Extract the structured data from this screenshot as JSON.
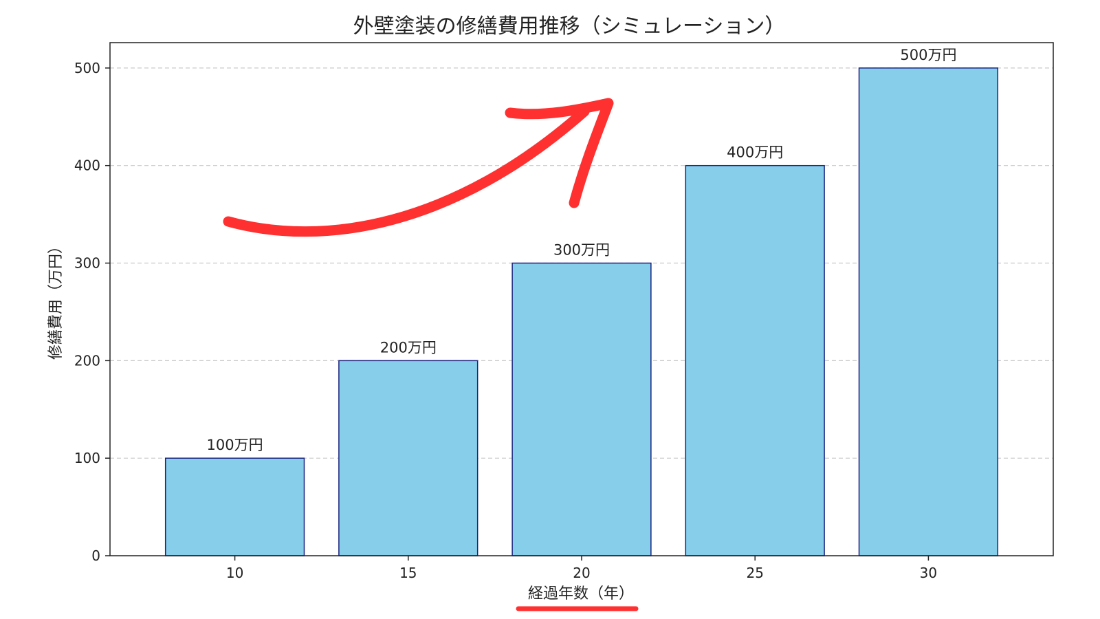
{
  "chart_data": {
    "type": "bar",
    "title": "外壁塗装の修繕費用推移（シミュレーション）",
    "xlabel": "経過年数（年）",
    "ylabel": "修繕費用（万円）",
    "categories": [
      "10",
      "15",
      "20",
      "25",
      "30"
    ],
    "values": [
      100,
      200,
      300,
      400,
      500
    ],
    "data_labels": [
      "100万円",
      "200万円",
      "300万円",
      "400万円",
      "500万円"
    ],
    "yticks": [
      "0",
      "100",
      "200",
      "300",
      "400",
      "500"
    ],
    "ylim": [
      0,
      526
    ],
    "grid": "horizontal dashed",
    "legend": "none",
    "colors": {
      "bar_fill": "#87ceeb",
      "bar_edge": "#1a237e",
      "grid": "#c8c8c8",
      "annotation": "#ff3030"
    },
    "annotations": [
      {
        "type": "arrow",
        "icon": "red-upward-trend-arrow",
        "meaning": "increasing trend"
      },
      {
        "type": "underline",
        "target": "xlabel"
      }
    ]
  }
}
